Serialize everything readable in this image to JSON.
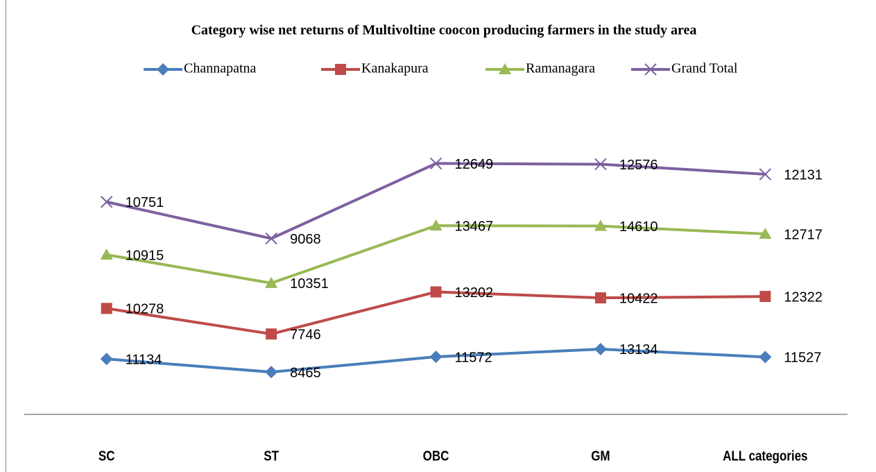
{
  "chart_data": {
    "type": "line",
    "stacked": true,
    "title": "Category wise net returns of Multivoltine coocon producing farmers in the study area",
    "categories": [
      "SC",
      "ST",
      "OBC",
      "GM",
      "ALL categories"
    ],
    "series": [
      {
        "name": "Channapatna",
        "color": "#4a7ebb",
        "marker": "diamond",
        "values": [
          11134,
          8465,
          11572,
          13134,
          11527
        ]
      },
      {
        "name": "Kanakapura",
        "color": "#be4b48",
        "marker": "square",
        "values": [
          10278,
          7746,
          13202,
          10422,
          12322
        ]
      },
      {
        "name": "Ramanagara",
        "color": "#98b954",
        "marker": "triangle",
        "values": [
          10915,
          10351,
          13467,
          14610,
          12717
        ]
      },
      {
        "name": "Grand Total",
        "color": "#7d60a0",
        "marker": "x",
        "values": [
          10751,
          9068,
          12649,
          12576,
          12131
        ]
      }
    ],
    "ylim": [
      0,
      60000
    ],
    "legend": "top"
  }
}
